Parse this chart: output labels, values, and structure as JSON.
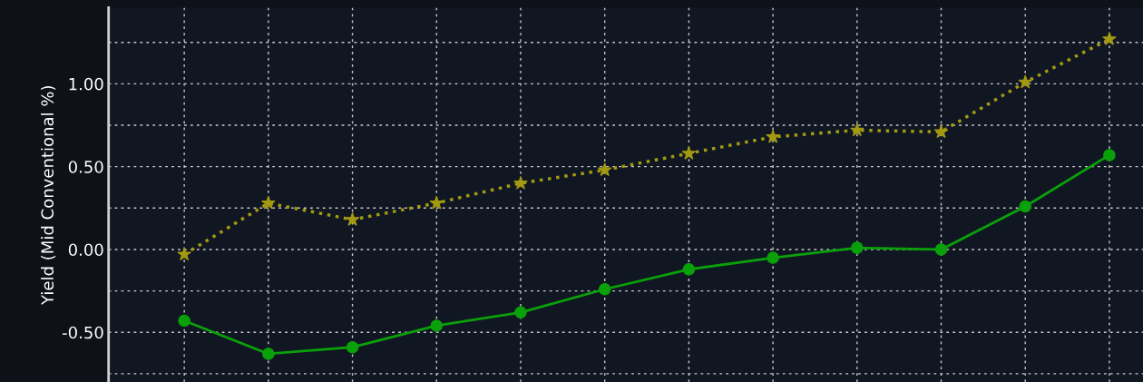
{
  "chart_data": {
    "type": "line",
    "ylabel": "Yield (Mid Conventional %)",
    "categories": [
      null,
      null,
      null,
      null,
      null,
      null,
      null,
      null,
      null,
      null,
      null,
      null
    ],
    "series": [
      {
        "color": "#a39a12",
        "marker": "star",
        "line_style": "dotted",
        "values": [
          -0.03,
          0.28,
          0.18,
          0.28,
          0.4,
          0.48,
          0.58,
          0.68,
          0.72,
          0.71,
          1.01,
          1.27
        ]
      },
      {
        "color": "#0aa00a",
        "marker": "circle",
        "line_style": "solid",
        "values": [
          -0.43,
          -0.63,
          -0.59,
          -0.46,
          -0.38,
          -0.24,
          -0.12,
          -0.05,
          0.01,
          0.0,
          0.26,
          0.57
        ]
      }
    ],
    "ylim": [
      -0.8,
      1.46
    ],
    "yticks": [
      {
        "value": -0.75,
        "label": null
      },
      {
        "value": -0.5,
        "label": "-0.50"
      },
      {
        "value": -0.25,
        "label": null
      },
      {
        "value": 0,
        "label": "0.00"
      },
      {
        "value": 0.25,
        "label": null
      },
      {
        "value": 0.5,
        "label": "0.50"
      },
      {
        "value": 0.75,
        "label": null
      },
      {
        "value": 1,
        "label": "1.00"
      },
      {
        "value": 1.25,
        "label": null
      }
    ],
    "tick_labels": "y",
    "grid": true,
    "legend": false
  }
}
